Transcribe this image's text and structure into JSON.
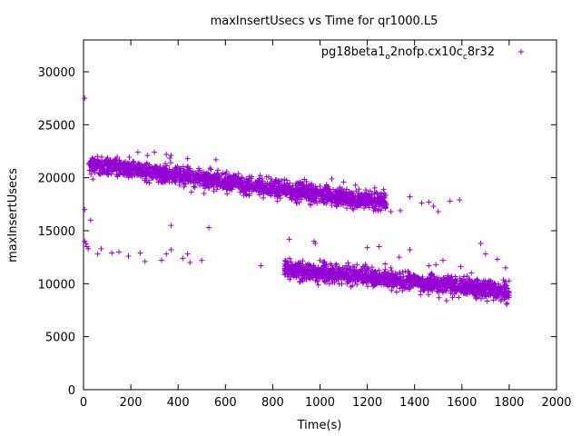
{
  "chart_data": {
    "type": "scatter",
    "title": "maxInsertUsecs vs Time for qr1000.L5",
    "xlabel": "Time(s)",
    "ylabel": "maxInsertUsecs",
    "xlim": [
      0,
      2000
    ],
    "ylim": [
      0,
      33000
    ],
    "xticks": [
      "0",
      "200",
      "400",
      "600",
      "800",
      "1000",
      "1200",
      "1400",
      "1600",
      "1800",
      "2000"
    ],
    "yticks": [
      "0",
      "5000",
      "10000",
      "15000",
      "20000",
      "25000",
      "30000"
    ],
    "grid": false,
    "legend_position": "top-right",
    "legend": {
      "parts": [
        "pg18beta1",
        "o",
        "2nofp.cx10c",
        "c",
        "8r32"
      ]
    },
    "series": [
      {
        "name": "pg18beta1_o2nofp.cx10c_c8r32",
        "color": "#9400D3",
        "marker": "plus",
        "segments": [
          {
            "band": "upper",
            "x_start": 20,
            "x_end": 1280,
            "y_start": 21300,
            "y_end": 17600
          },
          {
            "band": "lower",
            "x_start": 850,
            "x_end": 1800,
            "y_start": 11400,
            "y_end": 9200
          }
        ],
        "points": [
          [
            5,
            27500
          ],
          [
            5,
            17000
          ],
          [
            5,
            14000
          ],
          [
            10,
            13800
          ],
          [
            15,
            13500
          ],
          [
            20,
            13300
          ],
          [
            30,
            16000
          ],
          [
            60,
            12800
          ],
          [
            75,
            13300
          ],
          [
            120,
            12900
          ],
          [
            150,
            13000
          ],
          [
            190,
            12600
          ],
          [
            240,
            12900
          ],
          [
            260,
            12100
          ],
          [
            330,
            12200
          ],
          [
            350,
            12800
          ],
          [
            370,
            13200
          ],
          [
            420,
            12400
          ],
          [
            440,
            12800
          ],
          [
            450,
            12000
          ],
          [
            500,
            12200
          ],
          [
            370,
            15500
          ],
          [
            530,
            15300
          ],
          [
            750,
            11700
          ],
          [
            870,
            14200
          ],
          [
            975,
            14000
          ],
          [
            980,
            13800
          ],
          [
            1040,
            10000
          ],
          [
            1100,
            11000
          ],
          [
            1150,
            10200
          ],
          [
            1200,
            13400
          ],
          [
            1250,
            13500
          ],
          [
            1300,
            11500
          ],
          [
            1335,
            12500
          ],
          [
            1380,
            13200
          ],
          [
            1400,
            10700
          ],
          [
            1460,
            11700
          ],
          [
            1490,
            11800
          ],
          [
            1520,
            12200
          ],
          [
            1595,
            11600
          ],
          [
            1640,
            11000
          ],
          [
            1680,
            13800
          ],
          [
            1700,
            12800
          ],
          [
            1750,
            12300
          ],
          [
            1780,
            10100
          ],
          [
            1785,
            11500
          ],
          [
            1480,
            17300
          ],
          [
            1500,
            16800
          ],
          [
            1550,
            17800
          ],
          [
            1590,
            17900
          ],
          [
            1430,
            17600
          ],
          [
            1460,
            17700
          ],
          [
            1380,
            18200
          ],
          [
            1340,
            16900
          ],
          [
            1300,
            16800
          ],
          [
            1180,
            17600
          ],
          [
            1000,
            19200
          ],
          [
            1030,
            18800
          ],
          [
            1050,
            19900
          ],
          [
            1150,
            19300
          ],
          [
            1100,
            19600
          ],
          [
            1080,
            17600
          ],
          [
            960,
            17500
          ],
          [
            900,
            17600
          ],
          [
            820,
            17800
          ],
          [
            760,
            18100
          ],
          [
            700,
            18300
          ],
          [
            350,
            22200
          ],
          [
            370,
            22100
          ],
          [
            300,
            22400
          ],
          [
            270,
            22100
          ],
          [
            230,
            22400
          ],
          [
            440,
            21800
          ],
          [
            560,
            21700
          ]
        ]
      }
    ]
  }
}
